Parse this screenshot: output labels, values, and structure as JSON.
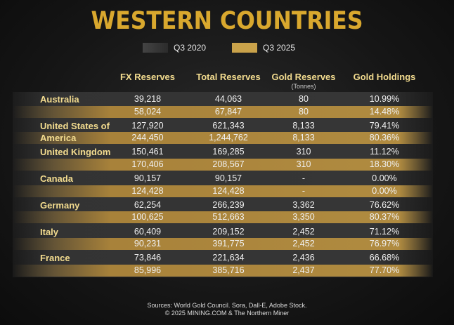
{
  "chart_data": {
    "type": "table",
    "title": "WESTERN COUNTRIES",
    "legend": [
      {
        "name": "Q3 2020",
        "color": "#3a3a3a"
      },
      {
        "name": "Q3 2025",
        "color": "#c9a24a"
      }
    ],
    "columns": [
      "FX Reserves",
      "Total Reserves",
      "Gold Reserves",
      "Gold Holdings"
    ],
    "gold_reserves_unit": "(Tonnes)",
    "rows": [
      {
        "country": "Australia",
        "q3_2020": [
          "39,218",
          "44,063",
          "80",
          "10.99%"
        ],
        "q3_2025": [
          "58,024",
          "67,847",
          "80",
          "14.48%"
        ]
      },
      {
        "country": "United States of America",
        "q3_2020": [
          "127,920",
          "621,343",
          "8,133",
          "79.41%"
        ],
        "q3_2025": [
          "244,450",
          "1,244,762",
          "8,133",
          "80.36%"
        ]
      },
      {
        "country": "United Kingdom",
        "q3_2020": [
          "150,461",
          "169,285",
          "310",
          "11.12%"
        ],
        "q3_2025": [
          "170,406",
          "208,567",
          "310",
          "18.30%"
        ]
      },
      {
        "country": "Canada",
        "q3_2020": [
          "90,157",
          "90,157",
          "-",
          "0.00%"
        ],
        "q3_2025": [
          "124,428",
          "124,428",
          "-",
          "0.00%"
        ]
      },
      {
        "country": "Germany",
        "q3_2020": [
          "62,254",
          "266,239",
          "3,362",
          "76.62%"
        ],
        "q3_2025": [
          "100,625",
          "512,663",
          "3,350",
          "80.37%"
        ]
      },
      {
        "country": "Italy",
        "q3_2020": [
          "60,409",
          "209,152",
          "2,452",
          "71.12%"
        ],
        "q3_2025": [
          "90,231",
          "391,775",
          "2,452",
          "76.97%"
        ]
      },
      {
        "country": "France",
        "q3_2020": [
          "73,846",
          "221,634",
          "2,436",
          "66.68%"
        ],
        "q3_2025": [
          "85,996",
          "385,716",
          "2,437",
          "77.70%"
        ]
      }
    ]
  },
  "footer": {
    "sources": "Sources: World Gold Council. Sora, Dall-E, Adobe Stock.",
    "copyright": "© 2025 MINING.COM & The Northern Miner"
  }
}
